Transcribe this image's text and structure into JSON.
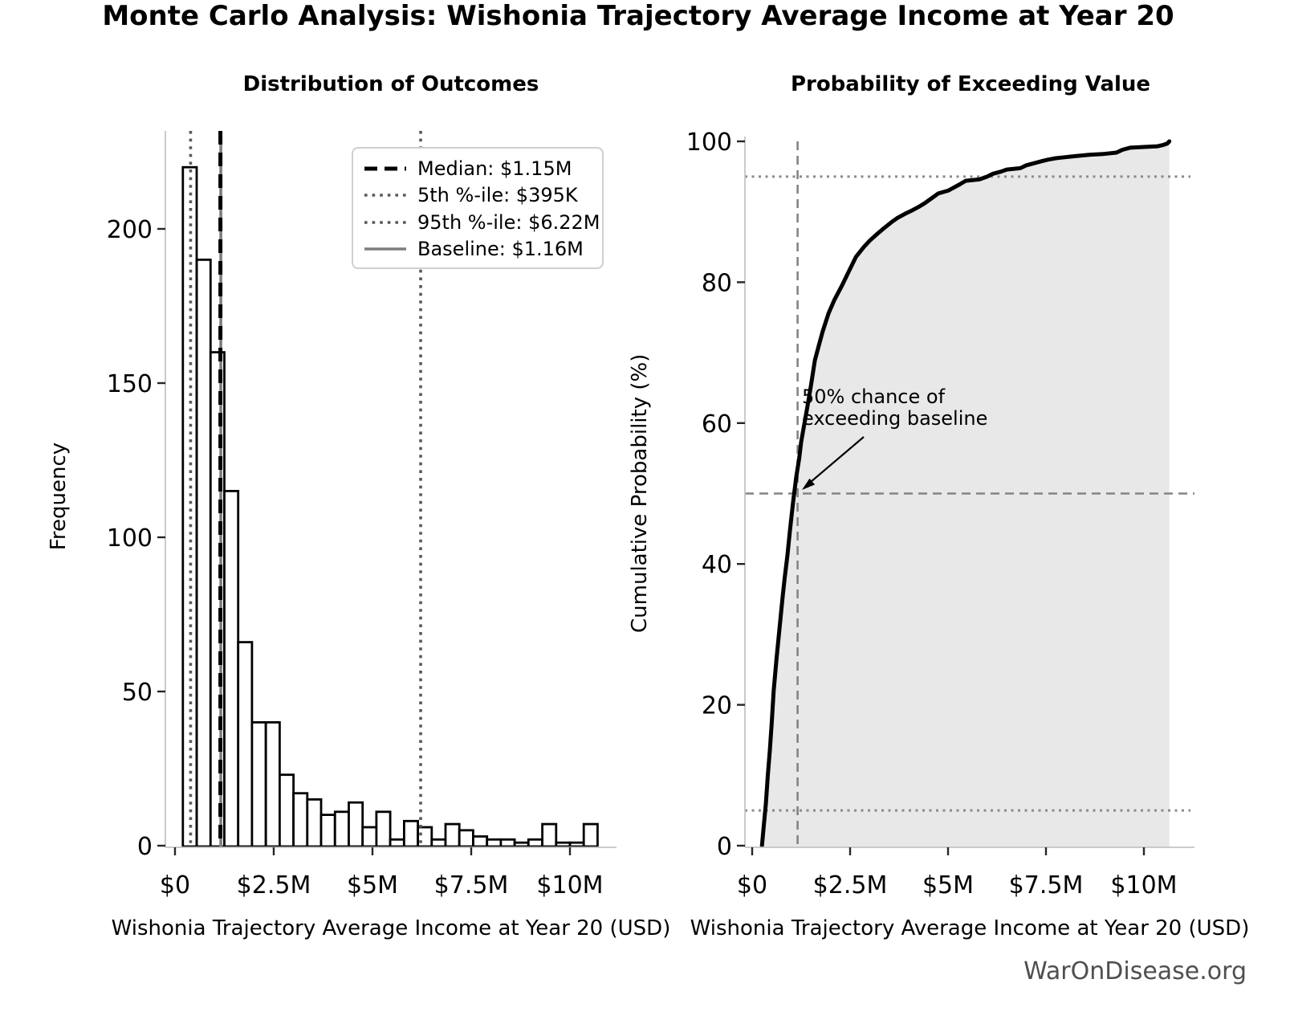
{
  "title": "Monte Carlo Analysis: Wishonia Trajectory Average Income at Year 20",
  "watermark": "WarOnDisease.org",
  "colors": {
    "curve": "#000000",
    "area_fill": "#e8e8e8",
    "bar_fill": "#ffffff",
    "bar_edge": "#000000",
    "median_line": "#000000",
    "percentile_line": "#595959",
    "baseline_line": "#7d7d7d",
    "guide_dashed": "#848484",
    "guide_dotted": "#8a8a8a",
    "spine": "#c4c4c4",
    "tick": "#262626",
    "tick_label": "#000000",
    "watermark_text": "#4f4f4f"
  },
  "chart_data": [
    {
      "type": "bar",
      "title": "Distribution of Outcomes",
      "xlabel": "Wishonia Trajectory Average Income at Year 20 (USD)",
      "ylabel": "Frequency",
      "x_tick_labels": [
        "$0",
        "$2.5M",
        "$5M",
        "$7.5M",
        "$10M"
      ],
      "x_tick_values_musd": [
        0,
        2.5,
        5,
        7.5,
        10
      ],
      "y_tick_values": [
        0,
        50,
        100,
        150,
        200
      ],
      "xlim_musd": [
        -0.25,
        11.2
      ],
      "ylim": [
        0,
        232
      ],
      "grid": "off",
      "bin_start_musd": 0.2,
      "bin_width_musd": 0.35,
      "frequencies": [
        220,
        190,
        160,
        115,
        66,
        40,
        40,
        23,
        17,
        15,
        10,
        11,
        14,
        6,
        11,
        2,
        8,
        6,
        2,
        7,
        5,
        3,
        2,
        2,
        1,
        2,
        7,
        1,
        1,
        7
      ],
      "markers": {
        "median_musd": 1.15,
        "p5_musd": 0.395,
        "p95_musd": 6.22,
        "baseline_musd": 1.16
      },
      "legend": {
        "position": "upper right",
        "items": [
          {
            "label": "Median: $1.15M",
            "style": "dashed-black"
          },
          {
            "label": "5th %-ile: $395K",
            "style": "dotted-gray"
          },
          {
            "label": "95th %-ile: $6.22M",
            "style": "dotted-gray"
          },
          {
            "label": "Baseline: $1.16M",
            "style": "solid-gray"
          }
        ]
      }
    },
    {
      "type": "line",
      "title": "Probability of Exceeding Value",
      "xlabel": "Wishonia Trajectory Average Income at Year 20 (USD)",
      "ylabel": "Cumulative Probability (%)",
      "x_tick_labels": [
        "$0",
        "$2.5M",
        "$5M",
        "$7.5M",
        "$10M"
      ],
      "x_tick_values_musd": [
        0,
        2.5,
        5,
        7.5,
        10
      ],
      "y_tick_values": [
        0,
        20,
        40,
        60,
        80,
        100
      ],
      "xlim_musd": [
        -0.2,
        11.3
      ],
      "ylim": [
        0,
        100
      ],
      "grid": "off",
      "area_filled_under_curve": true,
      "cdf_points_musd_pct": [
        [
          0.25,
          0
        ],
        [
          0.3,
          3
        ],
        [
          0.35,
          6
        ],
        [
          0.4,
          10
        ],
        [
          0.45,
          13.5
        ],
        [
          0.5,
          17.5
        ],
        [
          0.55,
          22
        ],
        [
          0.62,
          26.5
        ],
        [
          0.7,
          31
        ],
        [
          0.78,
          35.5
        ],
        [
          0.83,
          38
        ],
        [
          0.9,
          41.2
        ],
        [
          0.97,
          45
        ],
        [
          1.05,
          49
        ],
        [
          1.13,
          52.5
        ],
        [
          1.2,
          55
        ],
        [
          1.25,
          57.3
        ],
        [
          1.32,
          59.5
        ],
        [
          1.4,
          62
        ],
        [
          1.5,
          65.3
        ],
        [
          1.6,
          68.9
        ],
        [
          1.7,
          71
        ],
        [
          1.8,
          73
        ],
        [
          1.95,
          75.6
        ],
        [
          2.1,
          77.5
        ],
        [
          2.3,
          79.6
        ],
        [
          2.5,
          81.9
        ],
        [
          2.65,
          83.6
        ],
        [
          2.85,
          85.0
        ],
        [
          3.0,
          85.9
        ],
        [
          3.2,
          86.9
        ],
        [
          3.35,
          87.6
        ],
        [
          3.55,
          88.5
        ],
        [
          3.7,
          89.1
        ],
        [
          3.9,
          89.7
        ],
        [
          4.05,
          90.1
        ],
        [
          4.25,
          90.7
        ],
        [
          4.4,
          91.2
        ],
        [
          4.6,
          92.0
        ],
        [
          4.75,
          92.6
        ],
        [
          5.0,
          93.0
        ],
        [
          5.1,
          93.3
        ],
        [
          5.3,
          93.9
        ],
        [
          5.45,
          94.4
        ],
        [
          5.8,
          94.6
        ],
        [
          6.0,
          95.0
        ],
        [
          6.15,
          95.4
        ],
        [
          6.35,
          95.7
        ],
        [
          6.5,
          96.0
        ],
        [
          6.85,
          96.2
        ],
        [
          7.0,
          96.6
        ],
        [
          7.2,
          96.9
        ],
        [
          7.4,
          97.2
        ],
        [
          7.55,
          97.4
        ],
        [
          7.75,
          97.6
        ],
        [
          7.9,
          97.7
        ],
        [
          8.25,
          97.9
        ],
        [
          8.6,
          98.1
        ],
        [
          8.95,
          98.2
        ],
        [
          9.3,
          98.4
        ],
        [
          9.45,
          98.8
        ],
        [
          9.65,
          99.1
        ],
        [
          10.0,
          99.2
        ],
        [
          10.35,
          99.3
        ],
        [
          10.5,
          99.5
        ],
        [
          10.6,
          99.7
        ],
        [
          10.65,
          100
        ]
      ],
      "guides": {
        "h_dashed_pct": 50,
        "v_dashed_musd": 1.16,
        "h_dotted_pct": [
          5,
          95
        ]
      },
      "annotation": {
        "line1": "50% chance of",
        "line2": "exceeding baseline",
        "points_to": "intersection of curve with 50% line at baseline value"
      }
    }
  ]
}
